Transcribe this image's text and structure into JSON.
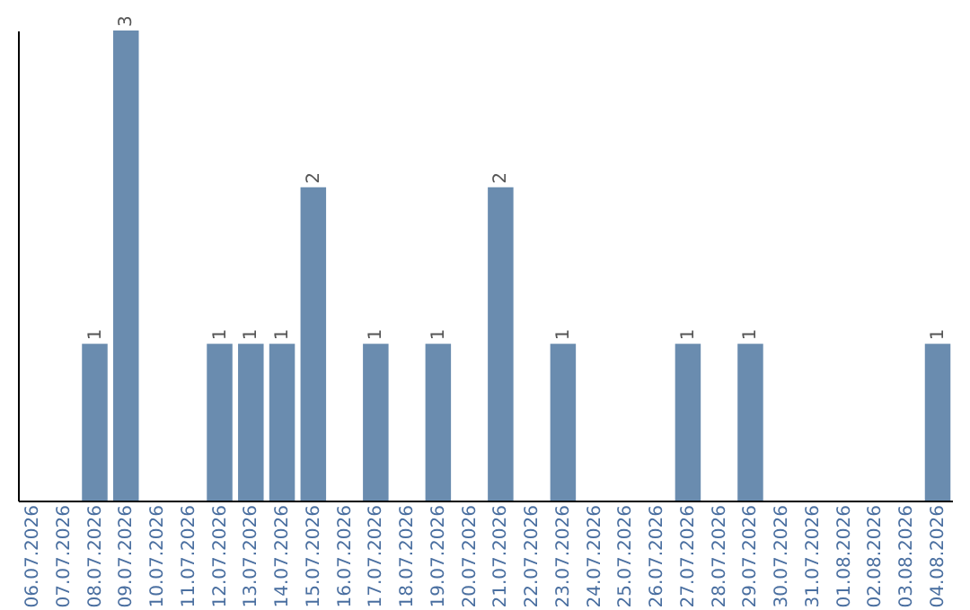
{
  "chart_data": {
    "type": "bar",
    "categories": [
      "06.07.2026",
      "07.07.2026",
      "08.07.2026",
      "09.07.2026",
      "10.07.2026",
      "11.07.2026",
      "12.07.2026",
      "13.07.2026",
      "14.07.2026",
      "15.07.2026",
      "16.07.2026",
      "17.07.2026",
      "18.07.2026",
      "19.07.2026",
      "20.07.2026",
      "21.07.2026",
      "22.07.2026",
      "23.07.2026",
      "24.07.2026",
      "25.07.2026",
      "26.07.2026",
      "27.07.2026",
      "28.07.2026",
      "29.07.2026",
      "30.07.2026",
      "31.07.2026",
      "01.08.2026",
      "02.08.2026",
      "03.08.2026",
      "04.08.2026"
    ],
    "values": [
      null,
      null,
      1,
      3,
      null,
      null,
      1,
      1,
      1,
      2,
      null,
      1,
      null,
      1,
      null,
      2,
      null,
      1,
      null,
      null,
      null,
      1,
      null,
      1,
      null,
      null,
      null,
      null,
      null,
      1
    ],
    "color": "#6a8caf",
    "data_labels": true,
    "tick_labels": "x"
  }
}
